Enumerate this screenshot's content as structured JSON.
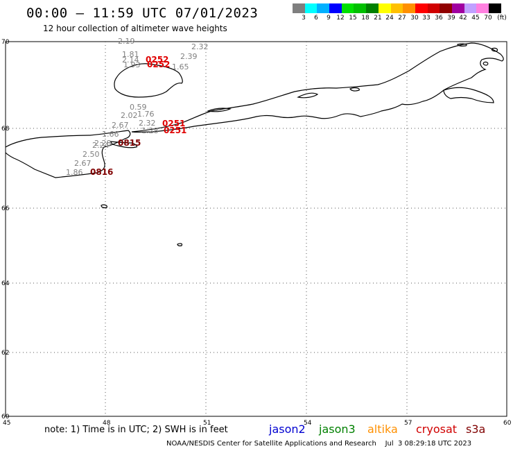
{
  "header": {
    "title": "00:00 — 11:59 UTC 07/01/2023",
    "subtitle": "12 hour collection of altimeter wave heights"
  },
  "legend": {
    "colors": [
      "#7f7f7f",
      "#00ffff",
      "#00b0ff",
      "#0000ff",
      "#00e000",
      "#00c000",
      "#008000",
      "#ffff00",
      "#ffc000",
      "#ff9000",
      "#ff0000",
      "#d00000",
      "#900000",
      "#a000a0",
      "#c0a0ff",
      "#ff80e0",
      "#000000"
    ],
    "labels": [
      "3",
      "6",
      "9",
      "12",
      "15",
      "18",
      "21",
      "24",
      "27",
      "30",
      "33",
      "36",
      "39",
      "42",
      "45",
      "70",
      "(ft)"
    ]
  },
  "axes": {
    "lon_ticks": [
      "45",
      "48",
      "51",
      "54",
      "57",
      "60"
    ],
    "lat_ticks": [
      "70",
      "68",
      "66",
      "64",
      "62",
      "60"
    ]
  },
  "swh_labels_ft": [
    "2.19",
    "2.32",
    "1.81",
    "2.39",
    "2.14",
    "1.65",
    "1.93",
    "0.59",
    "2.02",
    "1.76",
    "2.67",
    "2.32",
    "1.66",
    "1.28",
    "2.28",
    "2.24",
    "2.50",
    "2.67",
    "1.86"
  ],
  "time_labels": [
    "0252",
    "0252",
    "0251",
    "0251",
    "0815",
    "0816"
  ],
  "footer": {
    "note": "note: 1) Time is in UTC; 2) SWH is in feet",
    "satellites": [
      {
        "name": "jason2",
        "color": "#0000d0"
      },
      {
        "name": "jason3",
        "color": "#008000"
      },
      {
        "name": "altika",
        "color": "#ff9000"
      },
      {
        "name": "cryosat",
        "color": "#d00000"
      },
      {
        "name": "s3a",
        "color": "#800000"
      }
    ],
    "credit": "NOAA/NESDIS Center for Satellite Applications and Research    Jul  3 08:29:18 UTC 2023"
  }
}
